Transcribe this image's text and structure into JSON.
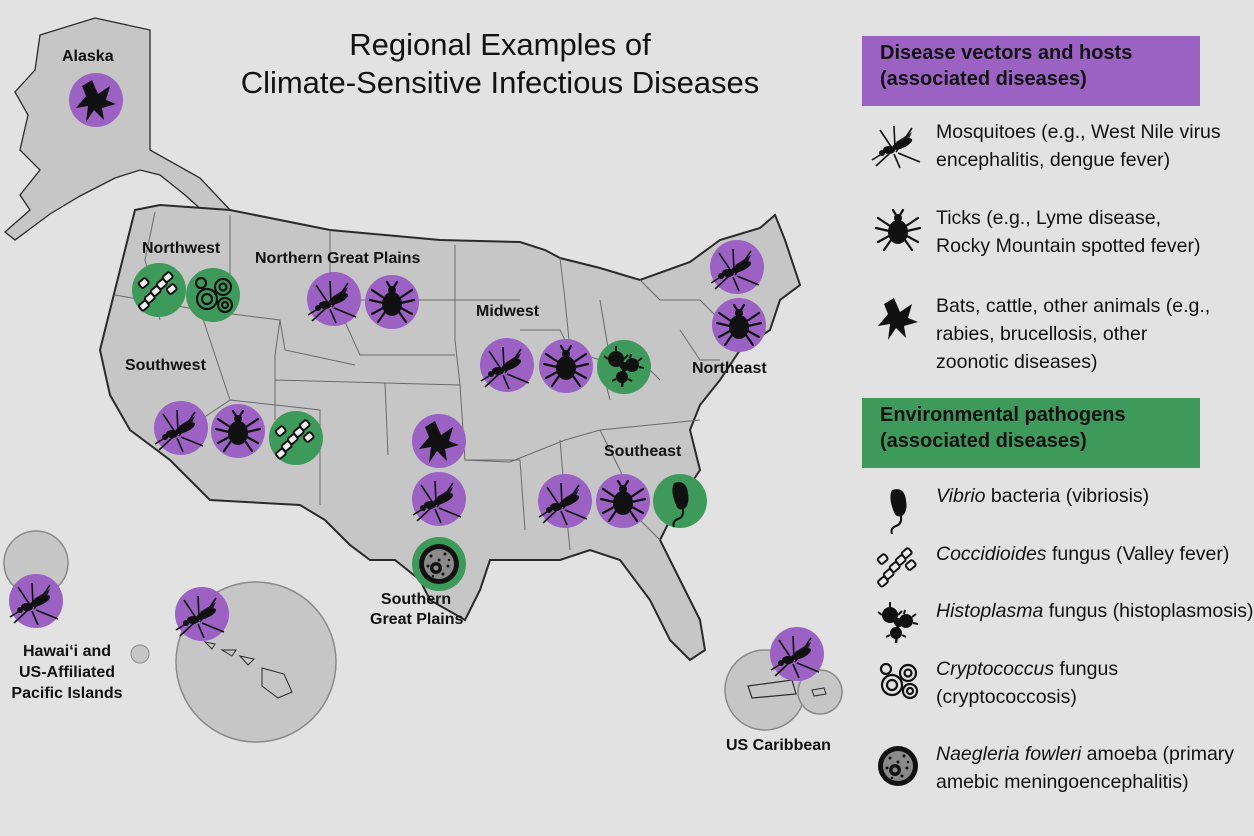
{
  "title": {
    "line1": "Regional Examples of",
    "line2": "Climate-Sensitive Infectious Diseases"
  },
  "regions": {
    "alaska": "Alaska",
    "northwest": "Northwest",
    "northern_great_plains": "Northern Great Plains",
    "midwest": "Midwest",
    "northeast": "Northeast",
    "southwest": "Southwest",
    "southeast": "Southeast",
    "southern_great_plains_1": "Southern",
    "southern_great_plains_2": "Great Plains",
    "hawaii_1": "Hawai‘i and",
    "hawaii_2": "US-Affiliated",
    "hawaii_3": "Pacific Islands",
    "caribbean": "US Caribbean"
  },
  "region_icons": {
    "alaska": [
      "bat"
    ],
    "northwest": [
      "coccidioides",
      "cryptococcus"
    ],
    "northern_great_plains": [
      "mosquito",
      "tick"
    ],
    "midwest": [
      "mosquito",
      "tick",
      "histoplasma"
    ],
    "northeast": [
      "mosquito",
      "tick"
    ],
    "southwest": [
      "mosquito",
      "tick",
      "coccidioides"
    ],
    "southern_great_plains": [
      "bat",
      "mosquito",
      "naegleria"
    ],
    "southeast": [
      "mosquito",
      "tick",
      "vibrio"
    ],
    "hawaii": [
      "mosquito",
      "mosquito"
    ],
    "caribbean": [
      "mosquito"
    ]
  },
  "legend": {
    "vectors_header_1": "Disease vectors and hosts",
    "vectors_header_2": "(associated diseases)",
    "mosquito_1": "Mosquitoes (e.g., West Nile virus",
    "mosquito_2": "encephalitis, dengue fever)",
    "tick_1": "Ticks (e.g., Lyme disease,",
    "tick_2": "Rocky Mountain spotted fever)",
    "bat_1": "Bats, cattle, other animals (e.g.,",
    "bat_2": "rabies, brucellosis, other",
    "bat_3": "zoonotic diseases)",
    "env_header_1": "Environmental pathogens",
    "env_header_2": "(associated diseases)",
    "vibrio_italic": "Vibrio",
    "vibrio_rest": " bacteria (vibriosis)",
    "cocci_italic": "Coccidioides",
    "cocci_rest": " fungus (Valley fever)",
    "histo_italic": "Histoplasma",
    "histo_rest": " fungus (histoplasmosis)",
    "crypto_italic": "Cryptococcus",
    "crypto_rest": " fungus",
    "crypto_2": "(cryptococcosis)",
    "naeg_italic": "Naegleria fowleri",
    "naeg_rest": " amoeba  (primary",
    "naeg_2": "amebic meningoencephalitis)"
  },
  "colors": {
    "vector_circle": "#9b62c4",
    "pathogen_circle": "#3d9a5a",
    "background": "#e2e2e2",
    "land": "#c6c6c6",
    "border": "#2a2a2a"
  }
}
